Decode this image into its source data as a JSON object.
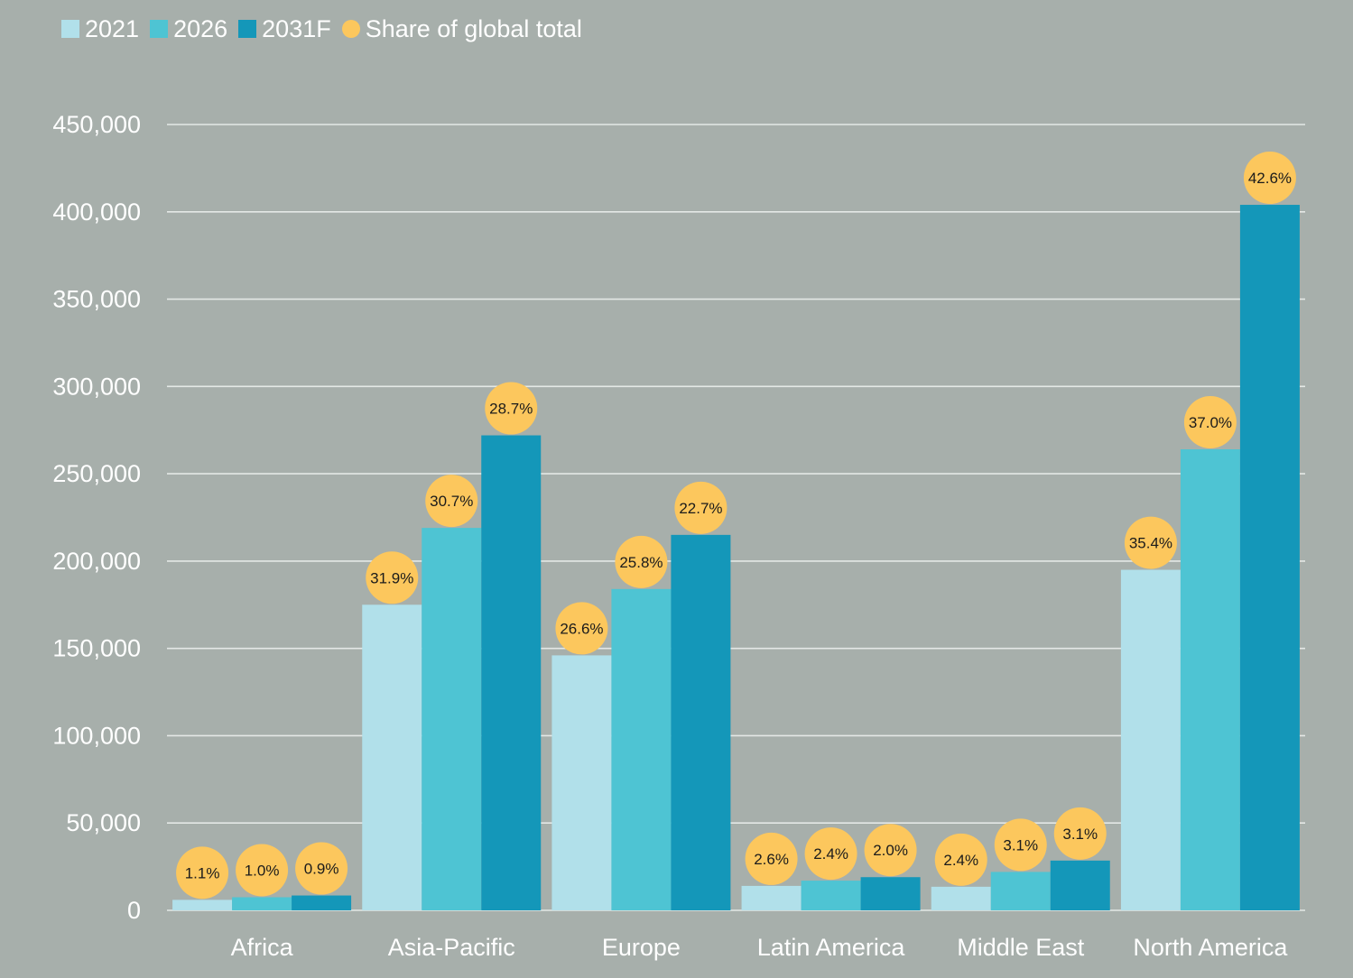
{
  "colors": {
    "background": "#a7afab",
    "series_2021": "#b1e0ea",
    "series_2026": "#4ec4d3",
    "series_2031": "#1497b9",
    "share_marker": "#fcc75d",
    "gridline": "#e4e8e6",
    "text": "#ffffff"
  },
  "legend": {
    "items": [
      {
        "label": "2021",
        "marker": "square",
        "color": "#b1e0ea"
      },
      {
        "label": "2026",
        "marker": "square",
        "color": "#4ec4d3"
      },
      {
        "label": "2031F",
        "marker": "square",
        "color": "#1497b9"
      },
      {
        "label": "Share of global total",
        "marker": "circle",
        "color": "#fcc75d"
      }
    ]
  },
  "chart_data": {
    "type": "bar",
    "title": "",
    "xlabel": "",
    "ylabel": "",
    "ylim": [
      0,
      450000
    ],
    "yticks": [
      0,
      50000,
      100000,
      150000,
      200000,
      250000,
      300000,
      350000,
      400000,
      450000
    ],
    "ytick_labels": [
      "0",
      "50,000",
      "100,000",
      "150,000",
      "200,000",
      "250,000",
      "300,000",
      "350,000",
      "400,000",
      "450,000"
    ],
    "grid": true,
    "legend_position": "top-left",
    "categories": [
      "Africa",
      "Asia-Pacific",
      "Europe",
      "Latin America",
      "Middle East",
      "North America"
    ],
    "series": [
      {
        "name": "2021",
        "values": [
          6000,
          175000,
          146000,
          14000,
          13500,
          195000
        ],
        "shares": [
          "1.1%",
          "31.9%",
          "26.6%",
          "2.6%",
          "2.4%",
          "35.4%"
        ]
      },
      {
        "name": "2026",
        "values": [
          7500,
          219000,
          184000,
          17000,
          22000,
          264000
        ],
        "shares": [
          "1.0%",
          "30.7%",
          "25.8%",
          "2.4%",
          "3.1%",
          "37.0%"
        ]
      },
      {
        "name": "2031F",
        "values": [
          8500,
          272000,
          215000,
          19000,
          28500,
          404000
        ],
        "shares": [
          "0.9%",
          "28.7%",
          "22.7%",
          "2.0%",
          "3.1%",
          "42.6%"
        ]
      }
    ]
  }
}
